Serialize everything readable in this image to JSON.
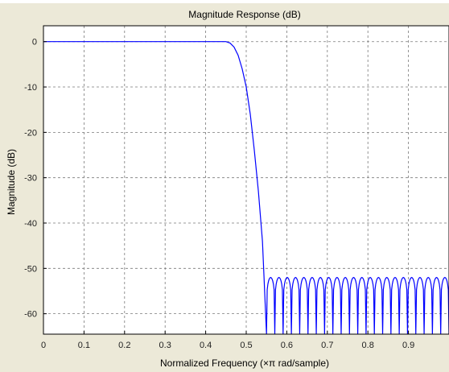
{
  "chart_data": {
    "type": "line",
    "title": "Magnitude Response (dB)",
    "xlabel": "Normalized Frequency (×π rad/sample)",
    "ylabel": "Magnitude (dB)",
    "xlim": [
      0,
      1
    ],
    "ylim": [
      -64.5,
      3.5
    ],
    "xticks": [
      0,
      0.1,
      0.2,
      0.3,
      0.4,
      0.5,
      0.6,
      0.7,
      0.8,
      0.9
    ],
    "xtick_labels": [
      "0",
      "0.1",
      "0.2",
      "0.3",
      "0.4",
      "0.5",
      "0.6",
      "0.7",
      "0.8",
      "0.9"
    ],
    "yticks": [
      0,
      -10,
      -20,
      -30,
      -40,
      -50,
      -60
    ],
    "ytick_labels": [
      "0",
      "-10",
      "-20",
      "-30",
      "-40",
      "-50",
      "-60"
    ],
    "grid": true,
    "grid_style": "dashed",
    "series": [
      {
        "color": "#0000ff",
        "passband_edge": 0.45,
        "passband_level": 0,
        "stopband_edge": 0.55,
        "stopband_ripple_peak": -52,
        "stopband_lobes": 22,
        "x": [
          0,
          0.1,
          0.2,
          0.3,
          0.4,
          0.45,
          0.46,
          0.47,
          0.48,
          0.49,
          0.5,
          0.51,
          0.52,
          0.53,
          0.54,
          0.55
        ],
        "y": [
          0,
          0,
          0,
          0,
          0,
          0,
          -0.3,
          -1.2,
          -3,
          -6,
          -10,
          -16,
          -24,
          -33,
          -44,
          -64.5
        ]
      }
    ],
    "colors": {
      "background": "#ece9d8",
      "plot_area": "#ffffff",
      "grid": "#7a7a7a",
      "line": "#0000ff"
    }
  }
}
